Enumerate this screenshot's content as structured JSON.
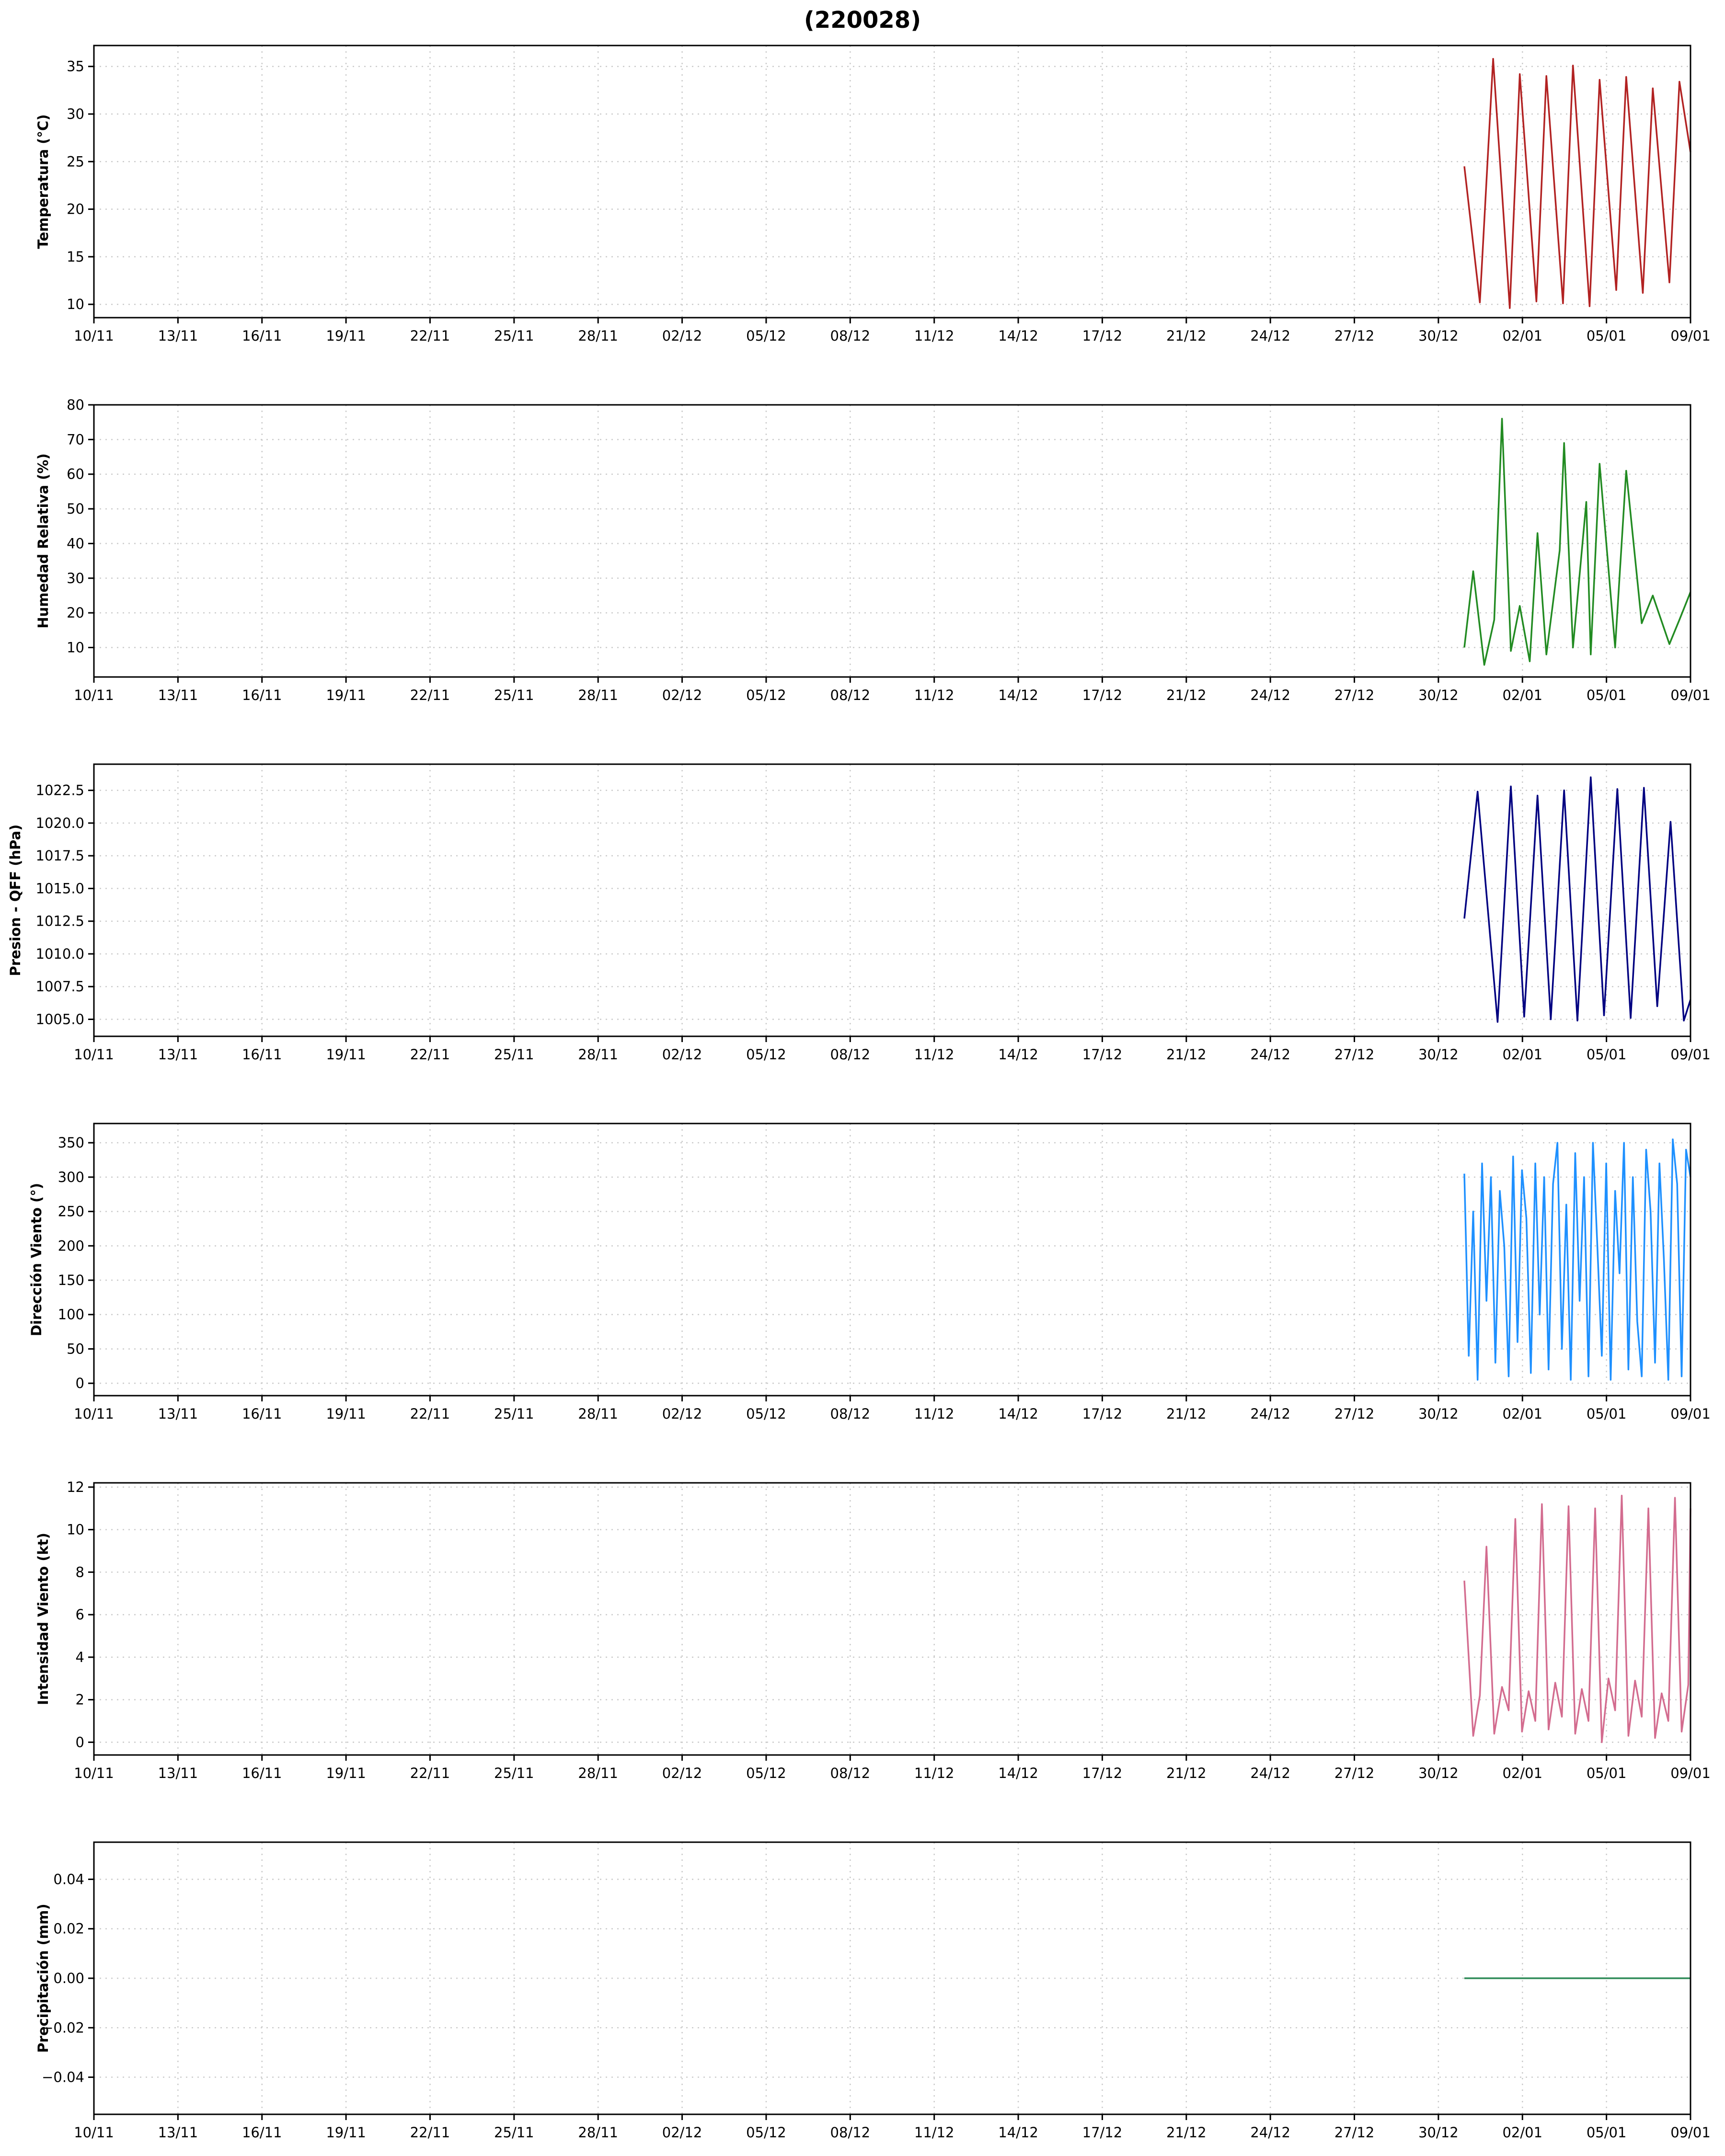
{
  "title": "(220028)",
  "x_axis": {
    "start": "2024-11-10",
    "end": "2025-01-09",
    "tick_labels": [
      "10/11",
      "13/11",
      "16/11",
      "19/11",
      "22/11",
      "25/11",
      "28/11",
      "02/12",
      "05/12",
      "08/12",
      "11/12",
      "14/12",
      "17/12",
      "21/12",
      "24/12",
      "27/12",
      "30/12",
      "02/01",
      "05/01",
      "09/01"
    ]
  },
  "chart_data": [
    {
      "type": "line",
      "ylabel": "Temperatura (°C)",
      "ylim": [
        8.6,
        37.2
      ],
      "yticks": [
        10,
        15,
        20,
        25,
        30,
        35
      ],
      "ytick_labels": [
        "10",
        "15",
        "20",
        "25",
        "30",
        "35"
      ],
      "color": "#b22222",
      "grid": true,
      "series": [
        {
          "x": [
            "2024-12-31T12:00",
            "2025-01-01T02:00",
            "2025-01-01T14:00",
            "2025-01-02T05:00",
            "2025-01-02T14:00",
            "2025-01-03T05:00",
            "2025-01-03T14:00",
            "2025-01-04T05:00",
            "2025-01-04T14:00",
            "2025-01-05T05:00",
            "2025-01-05T14:00",
            "2025-01-06T05:00",
            "2025-01-06T14:00",
            "2025-01-07T05:00",
            "2025-01-07T14:00",
            "2025-01-08T05:00",
            "2025-01-08T14:00",
            "2025-01-09T00:00"
          ],
          "values": [
            24.5,
            10.2,
            35.8,
            9.6,
            34.2,
            10.3,
            34.0,
            10.1,
            35.1,
            9.8,
            33.6,
            11.5,
            33.9,
            11.2,
            32.7,
            12.3,
            33.4,
            26.0
          ]
        }
      ]
    },
    {
      "type": "line",
      "ylabel": "Humedad Relativa (%)",
      "ylim": [
        1.5,
        80
      ],
      "yticks": [
        10,
        20,
        30,
        40,
        50,
        60,
        70,
        80
      ],
      "ytick_labels": [
        "10",
        "20",
        "30",
        "40",
        "50",
        "60",
        "70",
        "80"
      ],
      "color": "#228b22",
      "grid": true,
      "series": [
        {
          "x": [
            "2024-12-31T12:00",
            "2024-12-31T20:00",
            "2025-01-01T06:00",
            "2025-01-01T15:00",
            "2025-01-01T22:00",
            "2025-01-02T06:00",
            "2025-01-02T14:00",
            "2025-01-02T23:00",
            "2025-01-03T06:00",
            "2025-01-03T14:00",
            "2025-01-04T02:00",
            "2025-01-04T06:00",
            "2025-01-04T14:00",
            "2025-01-05T02:00",
            "2025-01-05T06:00",
            "2025-01-05T14:00",
            "2025-01-06T04:00",
            "2025-01-06T14:00",
            "2025-01-07T04:00",
            "2025-01-07T14:00",
            "2025-01-08T05:00",
            "2025-01-08T14:00",
            "2025-01-09T00:00"
          ],
          "values": [
            10,
            32,
            5,
            18,
            76,
            9,
            22,
            6,
            43,
            8,
            38,
            69,
            10,
            52,
            8,
            63,
            10,
            61,
            17,
            25,
            11,
            18,
            26
          ]
        }
      ]
    },
    {
      "type": "line",
      "ylabel": "Presion - QFF (hPa)",
      "ylim": [
        1003.7,
        1024.5
      ],
      "yticks": [
        1005.0,
        1007.5,
        1010.0,
        1012.5,
        1015.0,
        1017.5,
        1020.0,
        1022.5
      ],
      "ytick_labels": [
        "1005.0",
        "1007.5",
        "1010.0",
        "1012.5",
        "1015.0",
        "1017.5",
        "1020.0",
        "1022.5"
      ],
      "color": "#000080",
      "grid": true,
      "series": [
        {
          "x": [
            "2024-12-31T12:00",
            "2025-01-01T00:00",
            "2025-01-01T18:00",
            "2025-01-02T06:00",
            "2025-01-02T18:00",
            "2025-01-03T06:00",
            "2025-01-03T18:00",
            "2025-01-04T06:00",
            "2025-01-04T18:00",
            "2025-01-05T06:00",
            "2025-01-05T18:00",
            "2025-01-06T06:00",
            "2025-01-06T18:00",
            "2025-01-07T06:00",
            "2025-01-07T18:00",
            "2025-01-08T06:00",
            "2025-01-08T18:00",
            "2025-01-09T00:00"
          ],
          "values": [
            1012.7,
            1022.4,
            1004.8,
            1022.8,
            1005.2,
            1022.1,
            1005.0,
            1022.5,
            1004.9,
            1023.5,
            1005.3,
            1022.6,
            1005.1,
            1022.7,
            1006.0,
            1020.1,
            1004.9,
            1006.5
          ]
        }
      ]
    },
    {
      "type": "line",
      "ylabel": "Dirección Viento (°)",
      "ylim": [
        -18,
        378
      ],
      "yticks": [
        0,
        50,
        100,
        150,
        200,
        250,
        300,
        350
      ],
      "ytick_labels": [
        "0",
        "50",
        "100",
        "150",
        "200",
        "250",
        "300",
        "350"
      ],
      "color": "#1e90ff",
      "grid": true,
      "series": [
        {
          "x": [
            "2024-12-31T12:00",
            "2024-12-31T16:00",
            "2024-12-31T20:00",
            "2025-01-01T00:00",
            "2025-01-01T04:00",
            "2025-01-01T08:00",
            "2025-01-01T12:00",
            "2025-01-01T16:00",
            "2025-01-01T20:00",
            "2025-01-02T00:00",
            "2025-01-02T04:00",
            "2025-01-02T08:00",
            "2025-01-02T12:00",
            "2025-01-02T16:00",
            "2025-01-02T20:00",
            "2025-01-03T00:00",
            "2025-01-03T04:00",
            "2025-01-03T08:00",
            "2025-01-03T12:00",
            "2025-01-03T16:00",
            "2025-01-03T20:00",
            "2025-01-04T00:00",
            "2025-01-04T04:00",
            "2025-01-04T08:00",
            "2025-01-04T12:00",
            "2025-01-04T16:00",
            "2025-01-04T20:00",
            "2025-01-05T00:00",
            "2025-01-05T04:00",
            "2025-01-05T08:00",
            "2025-01-05T12:00",
            "2025-01-05T16:00",
            "2025-01-05T20:00",
            "2025-01-06T00:00",
            "2025-01-06T04:00",
            "2025-01-06T08:00",
            "2025-01-06T12:00",
            "2025-01-06T16:00",
            "2025-01-06T20:00",
            "2025-01-07T00:00",
            "2025-01-07T04:00",
            "2025-01-07T08:00",
            "2025-01-07T12:00",
            "2025-01-07T16:00",
            "2025-01-07T20:00",
            "2025-01-08T00:00",
            "2025-01-08T04:00",
            "2025-01-08T08:00",
            "2025-01-08T12:00",
            "2025-01-08T16:00",
            "2025-01-08T20:00",
            "2025-01-09T00:00"
          ],
          "values": [
            305,
            40,
            250,
            5,
            320,
            120,
            300,
            30,
            280,
            200,
            10,
            330,
            60,
            310,
            240,
            15,
            320,
            100,
            300,
            20,
            290,
            350,
            50,
            260,
            5,
            335,
            120,
            300,
            10,
            350,
            200,
            40,
            320,
            5,
            280,
            160,
            350,
            20,
            300,
            90,
            10,
            340,
            250,
            30,
            320,
            180,
            5,
            355,
            290,
            10,
            340,
            300
          ]
        }
      ]
    },
    {
      "type": "line",
      "ylabel": "Intensidad Viento (kt)",
      "ylim": [
        -0.6,
        12.2
      ],
      "yticks": [
        0,
        2,
        4,
        6,
        8,
        10,
        12
      ],
      "ytick_labels": [
        "0",
        "2",
        "4",
        "6",
        "8",
        "10",
        "12"
      ],
      "color": "#d36c8f",
      "grid": true,
      "series": [
        {
          "x": [
            "2024-12-31T12:00",
            "2024-12-31T20:00",
            "2025-01-01T02:00",
            "2025-01-01T08:00",
            "2025-01-01T15:00",
            "2025-01-01T22:00",
            "2025-01-02T04:00",
            "2025-01-02T10:00",
            "2025-01-02T16:00",
            "2025-01-02T22:00",
            "2025-01-03T04:00",
            "2025-01-03T10:00",
            "2025-01-03T16:00",
            "2025-01-03T22:00",
            "2025-01-04T04:00",
            "2025-01-04T10:00",
            "2025-01-04T16:00",
            "2025-01-04T22:00",
            "2025-01-05T04:00",
            "2025-01-05T10:00",
            "2025-01-05T16:00",
            "2025-01-05T22:00",
            "2025-01-06T04:00",
            "2025-01-06T10:00",
            "2025-01-06T16:00",
            "2025-01-06T22:00",
            "2025-01-07T04:00",
            "2025-01-07T10:00",
            "2025-01-07T16:00",
            "2025-01-07T22:00",
            "2025-01-08T04:00",
            "2025-01-08T10:00",
            "2025-01-08T16:00",
            "2025-01-08T22:00",
            "2025-01-09T00:00"
          ],
          "values": [
            7.6,
            0.3,
            2.2,
            9.2,
            0.4,
            2.6,
            1.5,
            10.5,
            0.5,
            2.4,
            1.0,
            11.2,
            0.6,
            2.8,
            1.2,
            11.1,
            0.4,
            2.5,
            1.0,
            11.0,
            0.0,
            3.0,
            1.5,
            11.6,
            0.3,
            2.9,
            1.2,
            11.0,
            0.2,
            2.3,
            1.0,
            11.5,
            0.5,
            2.7,
            11.0
          ]
        }
      ]
    },
    {
      "type": "line",
      "ylabel": "Precipitación (mm)",
      "ylim": [
        -0.055,
        0.055
      ],
      "yticks": [
        -0.04,
        -0.02,
        0.0,
        0.02,
        0.04
      ],
      "ytick_labels": [
        "−0.04",
        "−0.02",
        "0.00",
        "0.02",
        "0.04"
      ],
      "color": "#2e8b57",
      "grid": true,
      "series": [
        {
          "x": [
            "2024-12-31T12:00",
            "2025-01-09T00:00"
          ],
          "values": [
            0,
            0
          ]
        }
      ]
    }
  ]
}
